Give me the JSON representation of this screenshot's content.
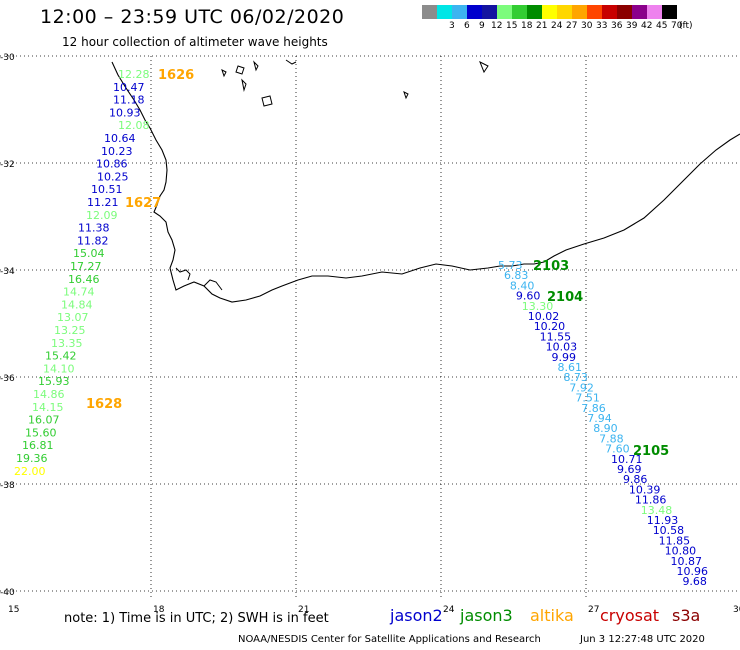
{
  "title": "12:00 – 23:59 UTC 06/02/2020",
  "subtitle": "12 hour collection of altimeter wave heights",
  "scale": {
    "unit": "(ft)",
    "levels": [
      {
        "label": "",
        "color": "#8c8c8c"
      },
      {
        "label": "3",
        "color": "#00e6e6"
      },
      {
        "label": "6",
        "color": "#3cb4f0"
      },
      {
        "label": "9",
        "color": "#0000cd"
      },
      {
        "label": "12",
        "color": "#1414a0"
      },
      {
        "label": "15",
        "color": "#7cfc7c"
      },
      {
        "label": "18",
        "color": "#32cd32"
      },
      {
        "label": "21",
        "color": "#008c00"
      },
      {
        "label": "24",
        "color": "#ffff00"
      },
      {
        "label": "27",
        "color": "#ffd700"
      },
      {
        "label": "30",
        "color": "#ffa500"
      },
      {
        "label": "33",
        "color": "#ff4500"
      },
      {
        "label": "36",
        "color": "#c80000"
      },
      {
        "label": "39",
        "color": "#8b0000"
      },
      {
        "label": "42",
        "color": "#8b008b"
      },
      {
        "label": "45",
        "color": "#ee82ee"
      },
      {
        "label": "70",
        "color": "#000000"
      }
    ]
  },
  "axes": {
    "lat_labels": [
      "-30",
      "-32",
      "-34",
      "-36",
      "-38",
      "-40"
    ],
    "lon_labels": [
      "15",
      "18",
      "21",
      "24",
      "27",
      "30"
    ]
  },
  "passes": [
    {
      "id": "1626",
      "color": "#ffa500"
    },
    {
      "id": "1627",
      "color": "#ffa500"
    },
    {
      "id": "1628",
      "color": "#ffa500"
    },
    {
      "id": "2103",
      "color": "#008c00"
    },
    {
      "id": "2104",
      "color": "#008c00"
    },
    {
      "id": "2105",
      "color": "#008c00"
    }
  ],
  "track_west": [
    {
      "v": "12.28",
      "c": "#7cfc7c"
    },
    {
      "v": "10.47",
      "c": "#0000cd"
    },
    {
      "v": "11.18",
      "c": "#0000cd"
    },
    {
      "v": "10.93",
      "c": "#0000cd"
    },
    {
      "v": "12.08",
      "c": "#7cfc7c"
    },
    {
      "v": "10.64",
      "c": "#0000cd"
    },
    {
      "v": "10.23",
      "c": "#0000cd"
    },
    {
      "v": "10.86",
      "c": "#0000cd"
    },
    {
      "v": "10.25",
      "c": "#0000cd"
    },
    {
      "v": "10.51",
      "c": "#0000cd"
    },
    {
      "v": "11.21",
      "c": "#0000cd"
    },
    {
      "v": "12.09",
      "c": "#7cfc7c"
    },
    {
      "v": "11.38",
      "c": "#0000cd"
    },
    {
      "v": "11.82",
      "c": "#0000cd"
    },
    {
      "v": "15.04",
      "c": "#32cd32"
    },
    {
      "v": "17.27",
      "c": "#32cd32"
    },
    {
      "v": "16.46",
      "c": "#32cd32"
    },
    {
      "v": "14.74",
      "c": "#7cfc7c"
    },
    {
      "v": "14.84",
      "c": "#7cfc7c"
    },
    {
      "v": "13.07",
      "c": "#7cfc7c"
    },
    {
      "v": "13.25",
      "c": "#7cfc7c"
    },
    {
      "v": "13.35",
      "c": "#7cfc7c"
    },
    {
      "v": "15.42",
      "c": "#32cd32"
    },
    {
      "v": "14.10",
      "c": "#7cfc7c"
    },
    {
      "v": "15.93",
      "c": "#32cd32"
    },
    {
      "v": "14.86",
      "c": "#7cfc7c"
    },
    {
      "v": "14.15",
      "c": "#7cfc7c"
    },
    {
      "v": "16.07",
      "c": "#32cd32"
    },
    {
      "v": "15.60",
      "c": "#32cd32"
    },
    {
      "v": "16.81",
      "c": "#32cd32"
    },
    {
      "v": "19.36",
      "c": "#32cd32"
    },
    {
      "v": "22.00",
      "c": "#ffff00"
    }
  ],
  "track_east": [
    {
      "v": "5.73",
      "c": "#3cb4f0"
    },
    {
      "v": "6.83",
      "c": "#3cb4f0"
    },
    {
      "v": "8.40",
      "c": "#3cb4f0"
    },
    {
      "v": "9.60",
      "c": "#0000cd"
    },
    {
      "v": "13.30",
      "c": "#7cfc7c"
    },
    {
      "v": "10.02",
      "c": "#0000cd"
    },
    {
      "v": "10.20",
      "c": "#0000cd"
    },
    {
      "v": "11.55",
      "c": "#0000cd"
    },
    {
      "v": "10.03",
      "c": "#0000cd"
    },
    {
      "v": "9.99",
      "c": "#0000cd"
    },
    {
      "v": "8.61",
      "c": "#3cb4f0"
    },
    {
      "v": "8.73",
      "c": "#3cb4f0"
    },
    {
      "v": "7.92",
      "c": "#3cb4f0"
    },
    {
      "v": "7.51",
      "c": "#3cb4f0"
    },
    {
      "v": "7.86",
      "c": "#3cb4f0"
    },
    {
      "v": "7.94",
      "c": "#3cb4f0"
    },
    {
      "v": "8.90",
      "c": "#3cb4f0"
    },
    {
      "v": "7.88",
      "c": "#3cb4f0"
    },
    {
      "v": "7.60",
      "c": "#3cb4f0"
    },
    {
      "v": "10.71",
      "c": "#0000cd"
    },
    {
      "v": "9.69",
      "c": "#0000cd"
    },
    {
      "v": "9.86",
      "c": "#0000cd"
    },
    {
      "v": "10.39",
      "c": "#0000cd"
    },
    {
      "v": "11.86",
      "c": "#0000cd"
    },
    {
      "v": "13.48",
      "c": "#7cfc7c"
    },
    {
      "v": "11.93",
      "c": "#0000cd"
    },
    {
      "v": "10.58",
      "c": "#0000cd"
    },
    {
      "v": "11.85",
      "c": "#0000cd"
    },
    {
      "v": "10.80",
      "c": "#0000cd"
    },
    {
      "v": "10.87",
      "c": "#0000cd"
    },
    {
      "v": "10.96",
      "c": "#0000cd"
    },
    {
      "v": "9.68",
      "c": "#0000cd"
    }
  ],
  "note": "note:  1) Time is in UTC;  2) SWH is in feet",
  "satellites": [
    {
      "name": "jason2",
      "color": "#0000cd"
    },
    {
      "name": "jason3",
      "color": "#008c00"
    },
    {
      "name": "altika",
      "color": "#ffa500"
    },
    {
      "name": "cryosat",
      "color": "#c80000"
    },
    {
      "name": "s3a",
      "color": "#8b0000"
    }
  ],
  "credit": "NOAA/NESDIS Center for Satellite Applications and Research",
  "timestamp": "Jun  3 12:27:48 UTC 2020"
}
